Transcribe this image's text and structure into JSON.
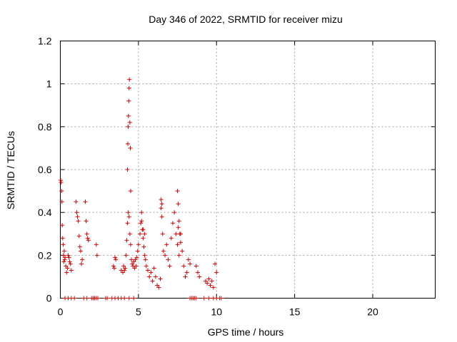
{
  "chart_data": {
    "type": "scatter",
    "title": "Day 346 of 2022, SRMTID for receiver mizu",
    "xlabel": "GPS time / hours",
    "ylabel": "SRMTID / TECUs",
    "xlim": [
      0,
      24
    ],
    "ylim": [
      0,
      1.2
    ],
    "xticks": [
      0,
      5,
      10,
      15,
      20
    ],
    "xtick_labels": [
      "0",
      "5",
      "10",
      "15",
      "20"
    ],
    "yticks": [
      0,
      0.2,
      0.4,
      0.6,
      0.8,
      1,
      1.2
    ],
    "ytick_labels": [
      "0",
      "0.2",
      "0.4",
      "0.6",
      "0.8",
      "1",
      "1.2"
    ],
    "grid": true,
    "marker": "+",
    "series_color": "#d40000",
    "series": [
      {
        "name": "SRMTID",
        "x": [
          0.02,
          0.05,
          0.08,
          0.1,
          0.12,
          0.15,
          0.18,
          0.2,
          0.22,
          0.25,
          0.28,
          0.3,
          0.35,
          0.4,
          0.45,
          0.5,
          0.55,
          0.6,
          0.65,
          0.7,
          1.0,
          1.05,
          1.1,
          1.15,
          1.2,
          1.25,
          1.3,
          1.35,
          1.4,
          1.6,
          1.65,
          1.7,
          1.75,
          1.8,
          2.3,
          2.35,
          3.4,
          3.45,
          3.5,
          3.55,
          3.9,
          4.0,
          4.05,
          4.1,
          4.15,
          4.2,
          4.25,
          4.3,
          4.35,
          4.4,
          4.45,
          4.5,
          4.55,
          4.6,
          4.65,
          4.7,
          4.75,
          4.8,
          4.85,
          4.9,
          4.95,
          5.0,
          5.1,
          5.15,
          5.2,
          5.25,
          5.3,
          5.35,
          5.4,
          5.45,
          5.5,
          5.6,
          5.7,
          5.8,
          5.9,
          6.0,
          6.1,
          6.2,
          6.3,
          6.4,
          6.45,
          6.5,
          6.55,
          6.6,
          6.7,
          6.8,
          6.9,
          7.0,
          7.1,
          7.2,
          7.3,
          7.4,
          7.5,
          7.55,
          7.6,
          7.7,
          7.8,
          7.9,
          8.0,
          8.1,
          8.2,
          8.3,
          8.7,
          8.8,
          8.9,
          9.3,
          9.4,
          9.5,
          9.6,
          9.7,
          9.8,
          9.9,
          10.0,
          0.3,
          0.5,
          0.7,
          0.9,
          1.5,
          1.7,
          2.0,
          2.1,
          2.2,
          2.3,
          2.4,
          2.9,
          3.0,
          3.3,
          3.5,
          3.7,
          3.9,
          4.1,
          4.4,
          4.7,
          8.3,
          8.4,
          8.5,
          8.6,
          8.7,
          9.2,
          9.5,
          9.8,
          10.0,
          10.2,
          10.3,
          4.3,
          4.32,
          4.34,
          4.36,
          4.38,
          4.4,
          4.42,
          4.45,
          4.48,
          4.5,
          7.5,
          7.55,
          7.6,
          7.65,
          7.7,
          6.45,
          6.5,
          5.2,
          5.3,
          5.4
        ],
        "y": [
          0.55,
          0.54,
          0.5,
          0.45,
          0.34,
          0.28,
          0.25,
          0.2,
          0.17,
          0.22,
          0.18,
          0.19,
          0.15,
          0.12,
          0.14,
          0.2,
          0.19,
          0.17,
          0.16,
          0.13,
          0.45,
          0.4,
          0.38,
          0.36,
          0.29,
          0.24,
          0.22,
          0.16,
          0.18,
          0.45,
          0.36,
          0.3,
          0.28,
          0.27,
          0.25,
          0.2,
          0.15,
          0.14,
          0.19,
          0.18,
          0.13,
          0.12,
          0.15,
          0.13,
          0.14,
          0.2,
          0.27,
          0.35,
          0.4,
          0.38,
          0.3,
          0.25,
          0.18,
          0.16,
          0.15,
          0.17,
          0.14,
          0.18,
          0.15,
          0.19,
          0.22,
          0.25,
          0.3,
          0.35,
          0.4,
          0.32,
          0.28,
          0.24,
          0.2,
          0.18,
          0.15,
          0.13,
          0.1,
          0.12,
          0.08,
          0.14,
          0.1,
          0.06,
          0.05,
          0.09,
          0.46,
          0.44,
          0.3,
          0.22,
          0.2,
          0.25,
          0.18,
          0.15,
          0.28,
          0.35,
          0.4,
          0.3,
          0.25,
          0.33,
          0.2,
          0.3,
          0.22,
          0.15,
          0.1,
          0.12,
          0.18,
          0.16,
          0.15,
          0.12,
          0.1,
          0.08,
          0.07,
          0.09,
          0.06,
          0.08,
          0.05,
          0.16,
          0.12,
          0,
          0,
          0,
          0,
          0,
          0,
          0,
          0,
          0,
          0,
          0,
          0,
          0,
          0,
          0,
          0,
          0,
          0,
          0,
          0,
          0,
          0,
          0,
          0,
          0,
          0,
          0,
          0,
          0,
          0,
          0,
          0.6,
          0.72,
          0.8,
          0.85,
          0.92,
          0.98,
          1.02,
          0.82,
          0.7,
          0.5,
          0.5,
          0.44,
          0.36,
          0.3,
          0.26,
          0.42,
          0.38,
          0.36,
          0.32,
          0.3
        ]
      }
    ]
  }
}
